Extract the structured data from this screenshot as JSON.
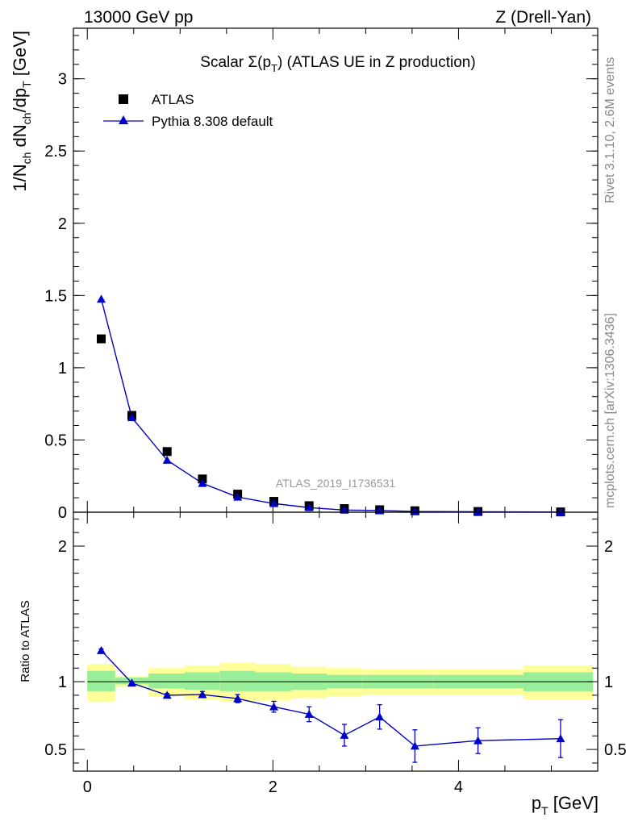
{
  "header": {
    "left": "13000 GeV pp",
    "right": "Z (Drell-Yan)"
  },
  "side": {
    "rivet": "Rivet 3.1.10,  2.6M events",
    "mcplots": "mcplots.cern.ch [arXiv:1306.3436]"
  },
  "colors": {
    "mc": "#0000cc",
    "data": "#000000",
    "band_inner": "#99ee99",
    "band_outer": "#ffff99"
  },
  "chart_data": [
    {
      "type": "scatter",
      "title": "Scalar Σ(pT) (ATLAS UE in Z production)",
      "title_parts": {
        "pre": "Scalar Σ(p",
        "sub": "T",
        "post": ") (ATLAS UE in Z production)"
      },
      "ylabel": "1/Nch dNch/dpT [GeV]",
      "ylabel_parts": {
        "a": "1/N",
        "a_sub": "ch",
        "b": " dN",
        "b_sub": "ch",
        "c": "/dp",
        "c_sub": "T",
        "d": " [GeV]"
      },
      "xlim": [
        -0.15,
        5.5
      ],
      "ylim": [
        0,
        3.35
      ],
      "yticks": [
        0,
        0.5,
        1,
        1.5,
        2,
        2.5,
        3
      ],
      "ytick_labels": [
        "0",
        "0.5",
        "1",
        "1.5",
        "2",
        "2.5",
        "3"
      ],
      "watermark": "ATLAS_2019_I1736531",
      "legend": {
        "placement": "top-left",
        "entries": [
          "ATLAS",
          "Pythia 8.308 default"
        ]
      },
      "series": [
        {
          "name": "ATLAS",
          "marker": "square",
          "x": [
            0.15,
            0.48,
            0.86,
            1.24,
            1.62,
            2.01,
            2.39,
            2.77,
            3.15,
            3.53,
            4.21,
            5.1
          ],
          "y": [
            1.2,
            0.67,
            0.42,
            0.23,
            0.125,
            0.075,
            0.045,
            0.025,
            0.017,
            0.01,
            0.005,
            0.002
          ]
        },
        {
          "name": "Pythia 8.308 default",
          "marker": "triangle",
          "x": [
            0.15,
            0.48,
            0.86,
            1.24,
            1.62,
            2.01,
            2.39,
            2.77,
            3.15,
            3.53,
            4.21,
            5.1
          ],
          "y": [
            1.475,
            0.655,
            0.36,
            0.2,
            0.105,
            0.06,
            0.032,
            0.015,
            0.012,
            0.005,
            0.003,
            0.001
          ]
        }
      ]
    },
    {
      "type": "scatter",
      "ylabel": "Ratio to ATLAS",
      "xlabel": "pT [GeV]",
      "xlabel_parts": {
        "pre": "p",
        "sub": "T",
        "post": " [GeV]"
      },
      "xlim": [
        -0.15,
        5.5
      ],
      "ylim": [
        0.34,
        2.25
      ],
      "xticks": [
        0,
        2,
        4
      ],
      "xtick_labels": [
        "0",
        "2",
        "4"
      ],
      "yticks": [
        0.5,
        1,
        2
      ],
      "ytick_labels": [
        "0.5",
        "1",
        "2"
      ],
      "bands": {
        "edges": [
          0,
          0.3,
          0.66,
          1.05,
          1.43,
          1.81,
          2.2,
          2.58,
          2.96,
          3.34,
          3.72,
          4.7,
          5.45
        ],
        "inner": [
          [
            0.93,
            1.08
          ],
          [
            0.98,
            1.03
          ],
          [
            0.95,
            1.06
          ],
          [
            0.94,
            1.07
          ],
          [
            0.93,
            1.08
          ],
          [
            0.93,
            1.07
          ],
          [
            0.94,
            1.06
          ],
          [
            0.95,
            1.05
          ],
          [
            0.95,
            1.05
          ],
          [
            0.95,
            1.05
          ],
          [
            0.95,
            1.05
          ],
          [
            0.93,
            1.07
          ]
        ],
        "outer": [
          [
            0.85,
            1.13
          ],
          [
            0.96,
            1.04
          ],
          [
            0.89,
            1.1
          ],
          [
            0.87,
            1.12
          ],
          [
            0.85,
            1.14
          ],
          [
            0.86,
            1.13
          ],
          [
            0.88,
            1.11
          ],
          [
            0.89,
            1.1
          ],
          [
            0.9,
            1.09
          ],
          [
            0.9,
            1.09
          ],
          [
            0.9,
            1.09
          ],
          [
            0.87,
            1.12
          ]
        ]
      },
      "series": [
        {
          "name": "Pythia 8.308 default",
          "marker": "triangle",
          "x": [
            0.15,
            0.48,
            0.86,
            1.24,
            1.62,
            2.01,
            2.39,
            2.77,
            3.15,
            3.53,
            4.21,
            5.1
          ],
          "y": [
            1.23,
            0.99,
            0.9,
            0.905,
            0.875,
            0.815,
            0.76,
            0.605,
            0.74,
            0.525,
            0.565,
            0.58
          ],
          "err": [
            0.012,
            0.01,
            0.012,
            0.022,
            0.03,
            0.04,
            0.055,
            0.08,
            0.09,
            0.12,
            0.095,
            0.14
          ]
        }
      ]
    }
  ]
}
